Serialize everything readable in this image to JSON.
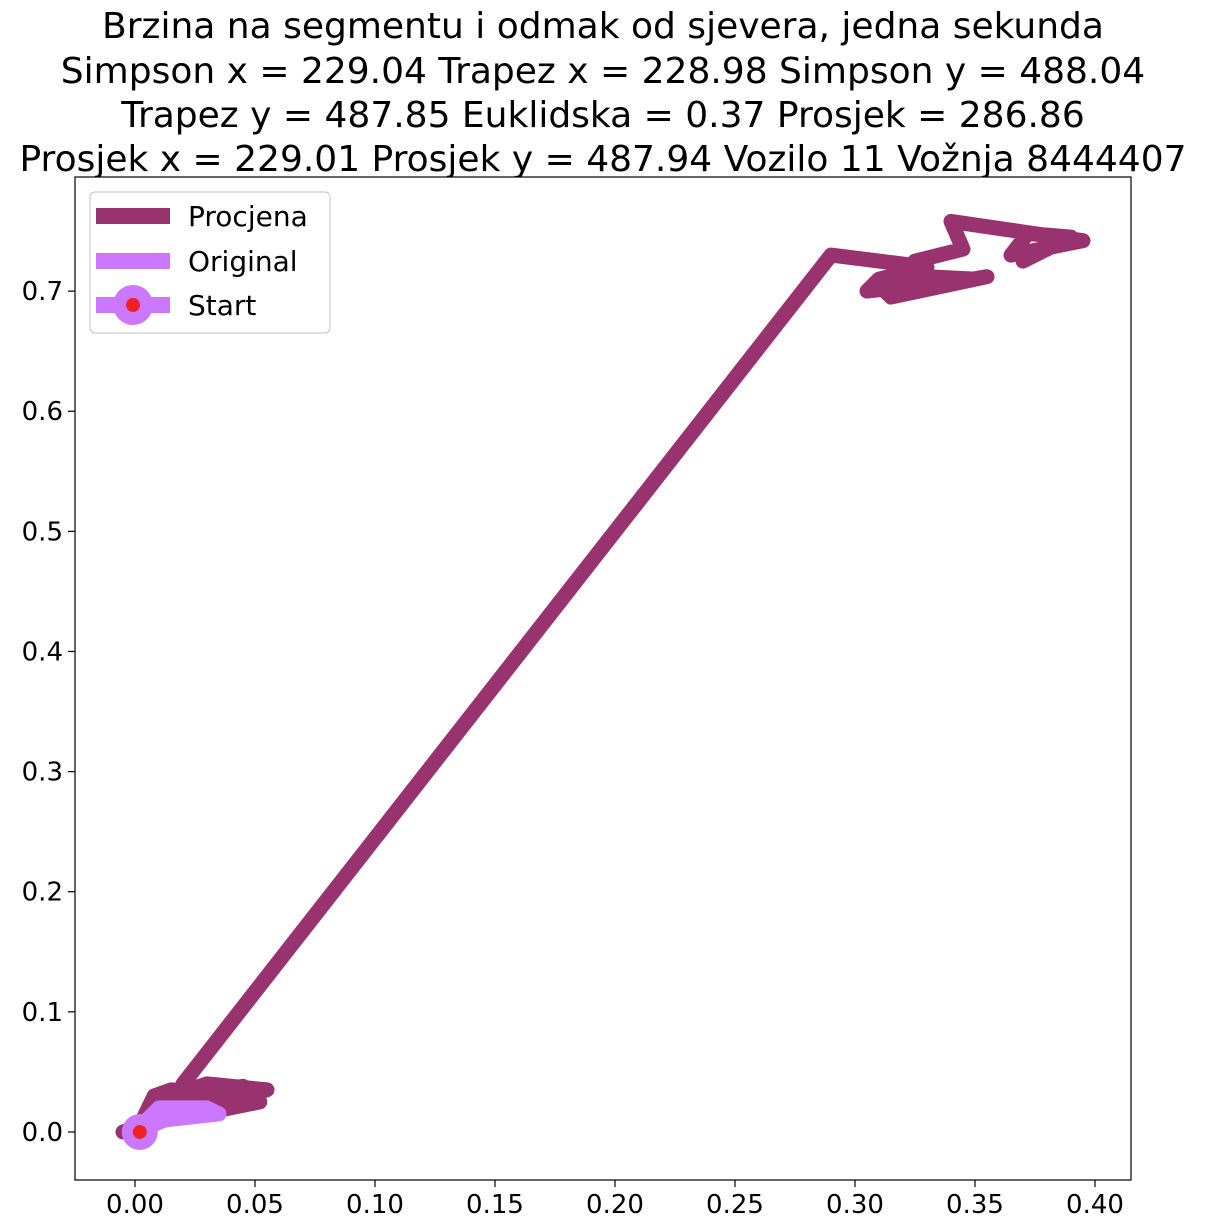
{
  "chart_data": {
    "type": "line",
    "title_lines": [
      "Brzina na segmentu i odmak od sjevera, jedna sekunda",
      "Simpson x = 229.04 Trapez x = 228.98 Simpson y = 488.04",
      "Trapez y = 487.85 Euklidska = 0.37 Prosjek = 286.86",
      "Prosjek x = 229.01 Prosjek y = 487.94 Vozilo 11 Vožnja 8444407"
    ],
    "xlabel": "",
    "ylabel": "",
    "xlim": [
      -0.025,
      0.415
    ],
    "ylim": [
      -0.04,
      0.795
    ],
    "xticks": [
      0.0,
      0.05,
      0.1,
      0.15,
      0.2,
      0.25,
      0.3,
      0.35,
      0.4
    ],
    "xtick_labels": [
      "0.00",
      "0.05",
      "0.10",
      "0.15",
      "0.20",
      "0.25",
      "0.30",
      "0.35",
      "0.40"
    ],
    "yticks": [
      0.0,
      0.1,
      0.2,
      0.3,
      0.4,
      0.5,
      0.6,
      0.7
    ],
    "ytick_labels": [
      "0.0",
      "0.1",
      "0.2",
      "0.3",
      "0.4",
      "0.5",
      "0.6",
      "0.7"
    ],
    "legend_position": "upper-left",
    "series": [
      {
        "name": "Procjena",
        "color": "#993370",
        "x": [
          -0.005,
          0.002,
          0.008,
          0.015,
          0.05,
          0.052,
          0.02,
          0.005,
          0.01,
          0.045,
          0.05,
          0.015,
          0.012,
          0.03,
          0.055,
          0.025,
          0.02,
          0.045,
          0.05,
          0.022,
          0.02,
          0.29,
          0.33,
          0.31,
          0.305,
          0.35,
          0.33,
          0.31,
          0.315,
          0.355,
          0.32,
          0.325,
          0.345,
          0.34,
          0.395,
          0.365,
          0.372,
          0.39,
          0.37
        ],
        "y": [
          0.0,
          0.005,
          0.03,
          0.035,
          0.03,
          0.025,
          0.012,
          0.008,
          0.02,
          0.03,
          0.028,
          0.018,
          0.028,
          0.04,
          0.035,
          0.02,
          0.03,
          0.038,
          0.033,
          0.028,
          0.04,
          0.73,
          0.72,
          0.71,
          0.7,
          0.71,
          0.712,
          0.705,
          0.695,
          0.712,
          0.7,
          0.725,
          0.735,
          0.758,
          0.742,
          0.73,
          0.748,
          0.745,
          0.725
        ]
      },
      {
        "name": "Original",
        "color": "#cc77ff",
        "x": [
          0.002,
          0.005,
          0.01,
          0.03,
          0.035,
          0.015,
          0.005,
          0.012,
          0.035
        ],
        "y": [
          0.0,
          0.01,
          0.02,
          0.02,
          0.015,
          0.012,
          0.004,
          0.01,
          0.015
        ]
      },
      {
        "name": "Start",
        "color": "#cc77ff",
        "marker_face": "#ee2222",
        "x": [
          0.002
        ],
        "y": [
          0.0
        ]
      }
    ]
  }
}
